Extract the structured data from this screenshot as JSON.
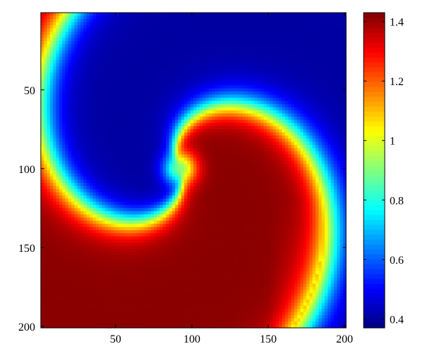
{
  "chart_data": {
    "type": "heatmap",
    "title": "",
    "xlabel": "",
    "ylabel": "",
    "xlim": [
      1,
      201
    ],
    "ylim": [
      1,
      201
    ],
    "y_axis_reversed": true,
    "xticks": [
      {
        "value": 50,
        "label": "50"
      },
      {
        "value": 100,
        "label": "100"
      },
      {
        "value": 150,
        "label": "150"
      },
      {
        "value": 200,
        "label": "200"
      }
    ],
    "yticks": [
      {
        "value": 50,
        "label": "50"
      },
      {
        "value": 100,
        "label": "100"
      },
      {
        "value": 150,
        "label": "150"
      },
      {
        "value": 200,
        "label": "200"
      }
    ],
    "colormap": "jet",
    "colorbar": {
      "clim": [
        0.37,
        1.43
      ],
      "ticks": [
        {
          "value": 0.4,
          "label": "0.4"
        },
        {
          "value": 0.6,
          "label": "0.6"
        },
        {
          "value": 0.8,
          "label": "0.8"
        },
        {
          "value": 1.0,
          "label": "1"
        },
        {
          "value": 1.2,
          "label": "1.2"
        },
        {
          "value": 1.4,
          "label": "1.4"
        }
      ]
    },
    "spiral_core": {
      "x": 92,
      "y": 100
    },
    "value_range": {
      "min": 0.4,
      "max": 1.42
    },
    "grid": false
  }
}
